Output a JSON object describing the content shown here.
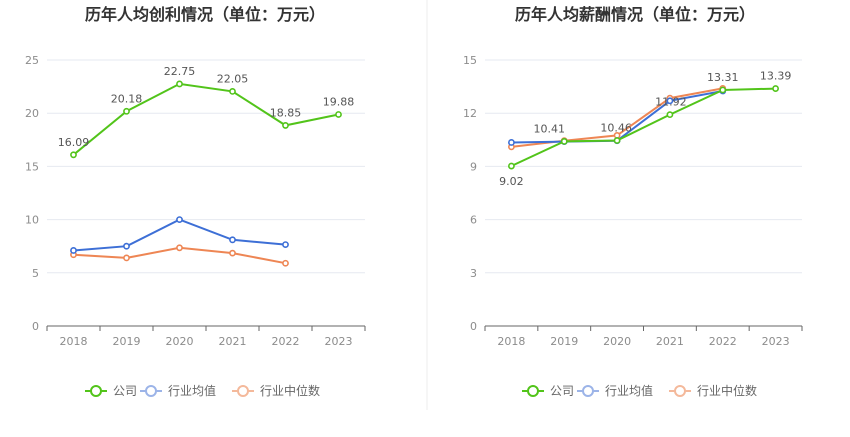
{
  "charts": [
    {
      "title": "历年人均创利情况（单位：万元）",
      "chart_data": {
        "type": "line",
        "categories": [
          "2018",
          "2019",
          "2020",
          "2021",
          "2022",
          "2023"
        ],
        "ylim": [
          0,
          25
        ],
        "yticks": [
          0,
          5,
          10,
          15,
          20,
          25
        ],
        "series": [
          {
            "name": "公司",
            "color": "#52c41a",
            "values": [
              16.09,
              20.18,
              22.75,
              22.05,
              18.85,
              19.88
            ],
            "labels": [
              "16.09",
              "20.18",
              "22.75",
              "22.05",
              "18.85",
              "19.88"
            ]
          },
          {
            "name": "行业均值",
            "color": "#3d6fd6",
            "values": [
              7.1,
              7.5,
              10.0,
              8.1,
              7.65,
              null
            ]
          },
          {
            "name": "行业中位数",
            "color": "#ee8654",
            "values": [
              6.7,
              6.4,
              7.35,
              6.85,
              5.9,
              null
            ]
          }
        ],
        "legend": "bottom",
        "grid": true
      }
    },
    {
      "title": "历年人均薪酬情况（单位：万元）",
      "chart_data": {
        "type": "line",
        "categories": [
          "2018",
          "2019",
          "2020",
          "2021",
          "2022",
          "2023"
        ],
        "ylim": [
          0,
          15
        ],
        "yticks": [
          0,
          3,
          6,
          9,
          12,
          15
        ],
        "series": [
          {
            "name": "公司",
            "color": "#52c41a",
            "values": [
              9.02,
              10.41,
              10.46,
              11.92,
              13.31,
              13.39
            ],
            "labels": [
              "9.02",
              "10.41",
              "10.46",
              "11.92",
              "13.31",
              "13.39"
            ]
          },
          {
            "name": "行业均值",
            "color": "#3d6fd6",
            "values": [
              10.35,
              10.4,
              10.45,
              12.7,
              13.25,
              null
            ]
          },
          {
            "name": "行业中位数",
            "color": "#ee8654",
            "values": [
              10.1,
              10.45,
              10.75,
              12.85,
              13.4,
              null
            ]
          }
        ],
        "legend": "bottom",
        "grid": true
      }
    }
  ]
}
